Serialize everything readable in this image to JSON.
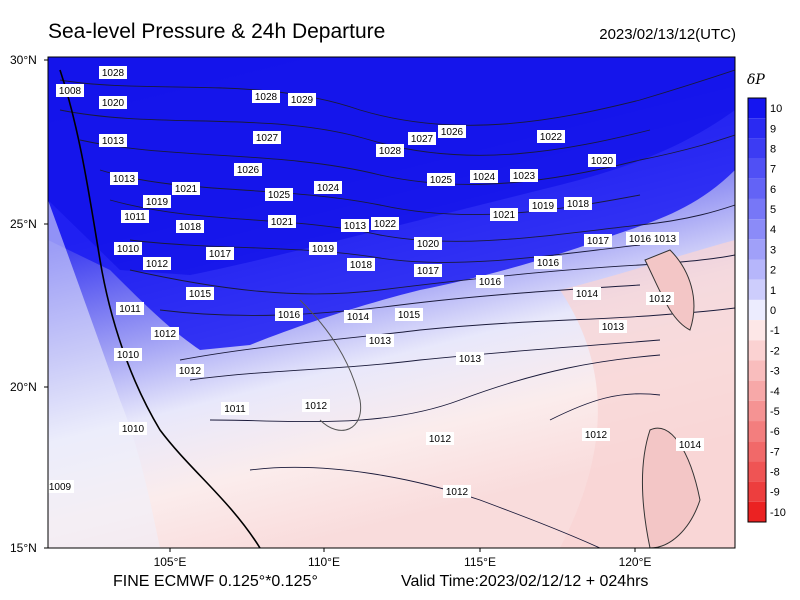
{
  "header": {
    "title": "Sea-level Pressure & 24h Departure",
    "datetime": "2023/02/13/12(UTC)"
  },
  "footer": {
    "model": "FINE ECMWF 0.125°*0.125°",
    "valid_time": "Valid Time:2023/02/12/12 + 024hrs"
  },
  "map": {
    "lat_labels": [
      "30°N",
      "25°N",
      "20°N",
      "15°N"
    ],
    "lon_labels": [
      "105°E",
      "110°E",
      "115°E",
      "120°E"
    ],
    "isobar_labels": [
      "1028",
      "1008",
      "1020",
      "1013",
      "1013",
      "1011",
      "1019",
      "1021",
      "1018",
      "1017",
      "1012",
      "1015",
      "1010",
      "1011",
      "1012",
      "1010",
      "1012",
      "1016",
      "1014",
      "1013",
      "1012",
      "1011",
      "1009",
      "1010",
      "1012",
      "1028",
      "1029",
      "1027",
      "1026",
      "1025",
      "1024",
      "1021",
      "1019",
      "1013",
      "1022",
      "1018",
      "1020",
      "1017",
      "1016",
      "1015",
      "1014",
      "1013",
      "1012",
      "1028",
      "1027",
      "1026",
      "1025",
      "1024",
      "1023",
      "1022",
      "1021",
      "1019",
      "1018",
      "1020",
      "1017",
      "1016",
      "1016",
      "1014",
      "1013",
      "1012",
      "1013",
      "1012"
    ]
  },
  "colorbar": {
    "title": "δP",
    "ticks": [
      "10",
      "9",
      "8",
      "7",
      "6",
      "5",
      "4",
      "3",
      "2",
      "1",
      "0",
      "-1",
      "-2",
      "-3",
      "-4",
      "-5",
      "-6",
      "-7",
      "-8",
      "-9",
      "-10"
    ],
    "colors": [
      "#1515f0",
      "#2a2af2",
      "#3c3cf3",
      "#5050f5",
      "#6363f6",
      "#7777f7",
      "#8b8bf8",
      "#a0a0f9",
      "#b6b6fb",
      "#cdcdfc",
      "#ececfe",
      "#fde7e7",
      "#fbd2d2",
      "#f9bdbd",
      "#f7a8a8",
      "#f59393",
      "#f37e7e",
      "#f16969",
      "#ef5454",
      "#ed3e3e",
      "#eb2222"
    ]
  }
}
